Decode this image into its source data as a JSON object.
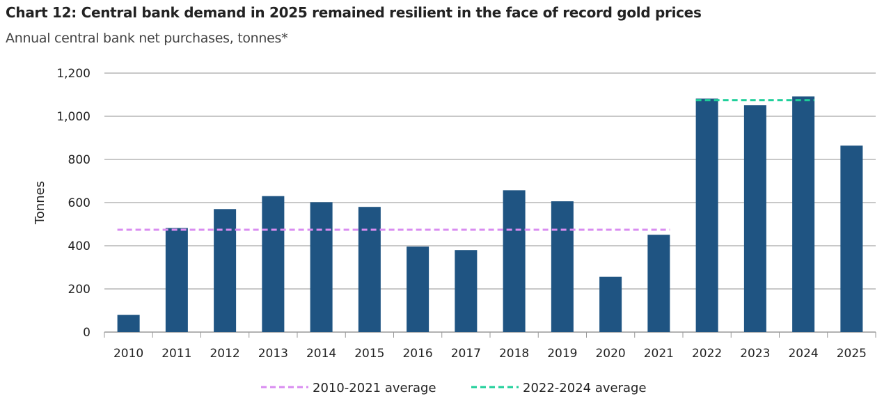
{
  "chart_data": {
    "type": "bar",
    "title": "Chart 12: Central bank demand in 2025 remained resilient in the face of record gold prices",
    "subtitle": "Annual central bank net purchases, tonnes*",
    "ylabel": "Tonnes",
    "xlabel": "",
    "ylim": [
      0,
      1200
    ],
    "yticks": [
      0,
      200,
      400,
      600,
      800,
      1000,
      1200
    ],
    "ytick_labels": [
      "0",
      "200",
      "400",
      "600",
      "800",
      "1,000",
      "1,200"
    ],
    "grid": true,
    "categories": [
      "2010",
      "2011",
      "2012",
      "2013",
      "2014",
      "2015",
      "2016",
      "2017",
      "2018",
      "2019",
      "2020",
      "2021",
      "2022",
      "2023",
      "2024",
      "2025"
    ],
    "values": [
      80,
      482,
      570,
      630,
      602,
      580,
      396,
      380,
      657,
      606,
      256,
      451,
      1082,
      1051,
      1092,
      864
    ],
    "bar_color": "#1f5482",
    "reference_lines": [
      {
        "name": "2010-2021 average",
        "value": 474,
        "from": "2010",
        "to": "2021",
        "color": "#d98cf0",
        "style": "dashed"
      },
      {
        "name": "2022-2024 average",
        "value": 1075,
        "from": "2022",
        "to": "2024",
        "color": "#1fcf9a",
        "style": "dashed"
      }
    ],
    "legend_position": "bottom"
  }
}
